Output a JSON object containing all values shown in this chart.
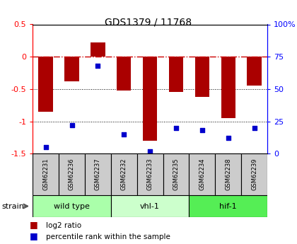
{
  "title": "GDS1379 / 11768",
  "samples": [
    "GSM62231",
    "GSM62236",
    "GSM62237",
    "GSM62232",
    "GSM62233",
    "GSM62235",
    "GSM62234",
    "GSM62238",
    "GSM62239"
  ],
  "log2_ratio": [
    -0.85,
    -0.38,
    0.22,
    -0.52,
    -1.3,
    -0.55,
    -0.62,
    -0.95,
    -0.45
  ],
  "percentile_rank": [
    5,
    22,
    68,
    15,
    2,
    20,
    18,
    12,
    20
  ],
  "groups": [
    {
      "label": "wild type",
      "start": 0,
      "end": 3,
      "color": "#aaffaa"
    },
    {
      "label": "vhl-1",
      "start": 3,
      "end": 6,
      "color": "#ccffcc"
    },
    {
      "label": "hif-1",
      "start": 6,
      "end": 9,
      "color": "#55ee55"
    }
  ],
  "ylim_left": [
    -1.5,
    0.5
  ],
  "ylim_right": [
    0,
    100
  ],
  "bar_color": "#aa0000",
  "dot_color": "#0000cc",
  "hline_color": "#cc0000",
  "dotted_lines": [
    -0.5,
    -1.0
  ],
  "legend_bar_label": "log2 ratio",
  "legend_dot_label": "percentile rank within the sample",
  "strain_label": "strain",
  "background_color": "#ffffff"
}
